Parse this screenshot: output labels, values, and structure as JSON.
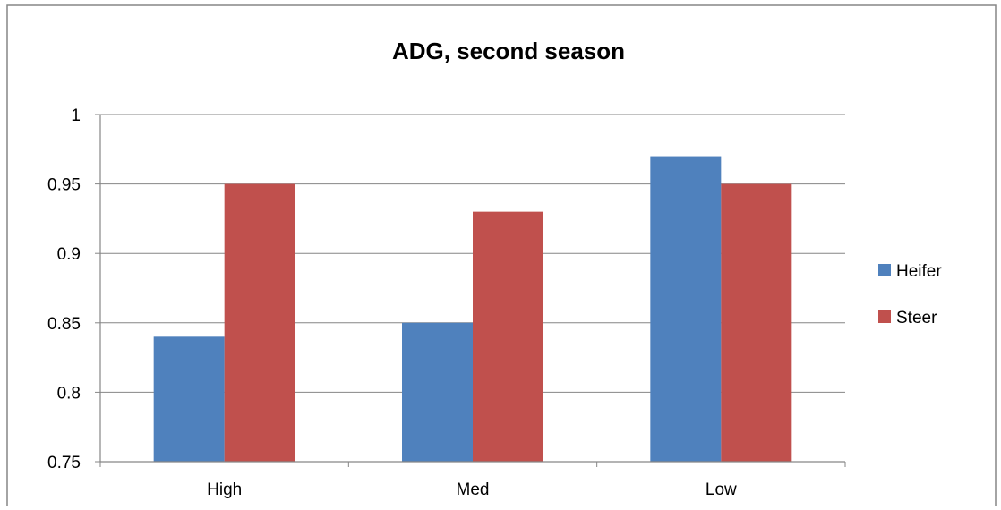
{
  "chart_data": {
    "type": "bar",
    "title": "ADG, second season",
    "xlabel": "",
    "ylabel": "",
    "categories": [
      "High",
      "Med",
      "Low"
    ],
    "series": [
      {
        "name": "Heifer",
        "values": [
          0.84,
          0.85,
          0.97
        ],
        "color": "#4F81BD"
      },
      {
        "name": "Steer",
        "values": [
          0.95,
          0.93,
          0.95
        ],
        "color": "#C0504D"
      }
    ],
    "ylim": [
      0.75,
      1
    ],
    "yticks": [
      0.75,
      0.8,
      0.85,
      0.9,
      0.95,
      1
    ],
    "ytick_labels": [
      "0.75",
      "0.8",
      "0.85",
      "0.9",
      "0.95",
      "1"
    ],
    "grid": true,
    "legend_position": "right"
  }
}
